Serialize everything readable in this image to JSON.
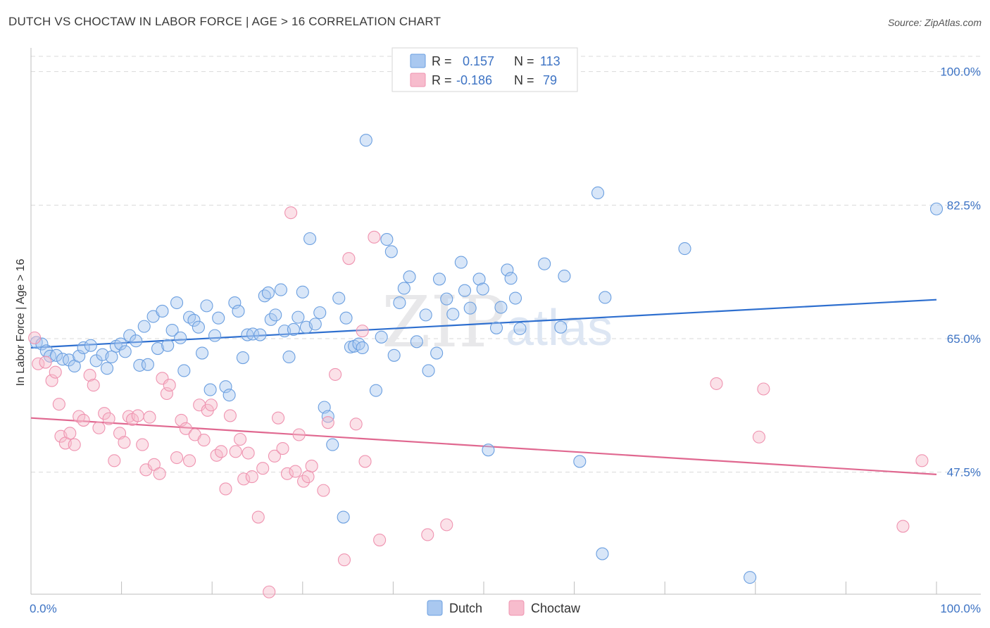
{
  "title": "DUTCH VS CHOCTAW IN LABOR FORCE | AGE > 16 CORRELATION CHART",
  "source": "Source: ZipAtlas.com",
  "watermark": {
    "zip": "ZIP",
    "atlas": "atlas"
  },
  "colors": {
    "dutch_fill": "#a9c8f0",
    "dutch_stroke": "#6b9fe0",
    "dutch_line": "#2e6fcf",
    "choctaw_fill": "#f7bccd",
    "choctaw_stroke": "#ef93b0",
    "choctaw_line": "#e06890",
    "axis_text": "#3d73c4",
    "grid": "#d9d9d9"
  },
  "legend": {
    "r_label": "R =",
    "n_label": "N =",
    "dutch": {
      "r": "0.157",
      "n": "113"
    },
    "choctaw": {
      "r": "-0.186",
      "n": "79"
    }
  },
  "bottom_legend": [
    "Dutch",
    "Choctaw"
  ],
  "chart_data": {
    "type": "scatter",
    "title": "DUTCH VS CHOCTAW IN LABOR FORCE | AGE > 16 CORRELATION CHART",
    "xlabel": "",
    "ylabel": "In Labor Force | Age > 16",
    "xlim": [
      0,
      100
    ],
    "ylim": [
      31.5,
      102
    ],
    "x_tick_labels": [
      "0.0%",
      "100.0%"
    ],
    "y_ticks": [
      47.5,
      65.0,
      82.5,
      100.0
    ],
    "y_tick_labels": [
      "47.5%",
      "65.0%",
      "82.5%",
      "100.0%"
    ],
    "series": [
      {
        "name": "Dutch",
        "trend": {
          "x": [
            0,
            100
          ],
          "y": [
            63.8,
            70.1
          ]
        },
        "points": [
          [
            0.6,
            64.5
          ],
          [
            1.2,
            64.3
          ],
          [
            1.7,
            63.4
          ],
          [
            2.1,
            62.7
          ],
          [
            2.8,
            62.8
          ],
          [
            3.5,
            62.3
          ],
          [
            4.2,
            62.2
          ],
          [
            4.8,
            61.4
          ],
          [
            5.3,
            62.7
          ],
          [
            5.8,
            63.8
          ],
          [
            6.6,
            64.1
          ],
          [
            7.2,
            62.1
          ],
          [
            7.9,
            62.9
          ],
          [
            8.4,
            61.1
          ],
          [
            8.9,
            62.6
          ],
          [
            9.4,
            64.0
          ],
          [
            9.9,
            64.3
          ],
          [
            10.4,
            63.3
          ],
          [
            10.9,
            65.4
          ],
          [
            11.6,
            64.7
          ],
          [
            12.0,
            61.5
          ],
          [
            12.5,
            66.6
          ],
          [
            12.9,
            61.6
          ],
          [
            13.5,
            67.9
          ],
          [
            14.0,
            63.7
          ],
          [
            14.5,
            68.6
          ],
          [
            15.1,
            64.1
          ],
          [
            15.6,
            66.1
          ],
          [
            16.1,
            69.7
          ],
          [
            16.5,
            65.1
          ],
          [
            16.9,
            60.8
          ],
          [
            17.5,
            67.8
          ],
          [
            18.0,
            67.4
          ],
          [
            18.5,
            66.5
          ],
          [
            18.9,
            63.1
          ],
          [
            19.4,
            69.3
          ],
          [
            19.8,
            58.3
          ],
          [
            20.3,
            65.4
          ],
          [
            20.7,
            67.7
          ],
          [
            21.5,
            58.7
          ],
          [
            21.9,
            57.6
          ],
          [
            22.5,
            69.7
          ],
          [
            22.9,
            68.6
          ],
          [
            23.4,
            62.5
          ],
          [
            23.9,
            65.5
          ],
          [
            24.5,
            65.6
          ],
          [
            25.3,
            65.5
          ],
          [
            25.8,
            70.6
          ],
          [
            26.2,
            71.0
          ],
          [
            26.5,
            67.5
          ],
          [
            27.0,
            68.1
          ],
          [
            27.6,
            71.4
          ],
          [
            28.0,
            66.0
          ],
          [
            28.5,
            62.6
          ],
          [
            29.0,
            66.2
          ],
          [
            29.5,
            67.8
          ],
          [
            30.0,
            71.1
          ],
          [
            30.4,
            66.5
          ],
          [
            30.8,
            78.1
          ],
          [
            31.4,
            66.9
          ],
          [
            31.9,
            68.4
          ],
          [
            32.4,
            56.0
          ],
          [
            32.8,
            54.8
          ],
          [
            33.3,
            51.1
          ],
          [
            34.0,
            70.3
          ],
          [
            34.5,
            41.6
          ],
          [
            34.8,
            67.7
          ],
          [
            35.3,
            63.9
          ],
          [
            35.7,
            64.0
          ],
          [
            36.2,
            64.3
          ],
          [
            36.6,
            63.8
          ],
          [
            37.0,
            91.0
          ],
          [
            38.1,
            58.2
          ],
          [
            38.7,
            65.2
          ],
          [
            39.3,
            78.0
          ],
          [
            39.8,
            76.4
          ],
          [
            40.1,
            62.8
          ],
          [
            40.7,
            69.7
          ],
          [
            41.2,
            71.6
          ],
          [
            41.8,
            73.1
          ],
          [
            42.6,
            64.6
          ],
          [
            43.6,
            68.1
          ],
          [
            43.9,
            60.8
          ],
          [
            44.8,
            63.1
          ],
          [
            45.1,
            72.8
          ],
          [
            45.9,
            70.2
          ],
          [
            46.6,
            68.2
          ],
          [
            47.5,
            75.0
          ],
          [
            47.9,
            71.3
          ],
          [
            48.5,
            69.0
          ],
          [
            49.5,
            72.8
          ],
          [
            49.9,
            71.5
          ],
          [
            50.5,
            50.4
          ],
          [
            51.4,
            66.4
          ],
          [
            51.9,
            69.1
          ],
          [
            52.6,
            74.0
          ],
          [
            53.0,
            72.9
          ],
          [
            53.5,
            70.3
          ],
          [
            54.0,
            66.3
          ],
          [
            56.7,
            74.8
          ],
          [
            58.5,
            66.5
          ],
          [
            58.9,
            73.2
          ],
          [
            60.6,
            48.9
          ],
          [
            62.6,
            84.1
          ],
          [
            63.1,
            36.8
          ],
          [
            63.4,
            70.4
          ],
          [
            72.2,
            76.8
          ],
          [
            79.4,
            33.7
          ],
          [
            100.0,
            82.0
          ]
        ]
      },
      {
        "name": "Choctaw",
        "trend": {
          "x": [
            0,
            100
          ],
          "y": [
            54.6,
            47.2
          ]
        },
        "points": [
          [
            0.4,
            65.1
          ],
          [
            0.8,
            61.7
          ],
          [
            1.6,
            61.9
          ],
          [
            2.3,
            59.5
          ],
          [
            2.7,
            60.6
          ],
          [
            3.1,
            56.4
          ],
          [
            3.3,
            52.2
          ],
          [
            3.8,
            51.3
          ],
          [
            4.3,
            52.6
          ],
          [
            4.8,
            51.1
          ],
          [
            5.3,
            54.8
          ],
          [
            5.8,
            54.3
          ],
          [
            6.5,
            60.2
          ],
          [
            6.9,
            58.9
          ],
          [
            7.5,
            53.3
          ],
          [
            8.1,
            55.2
          ],
          [
            8.6,
            54.5
          ],
          [
            9.2,
            49.0
          ],
          [
            9.8,
            52.6
          ],
          [
            10.3,
            51.4
          ],
          [
            10.8,
            54.8
          ],
          [
            11.2,
            54.4
          ],
          [
            11.8,
            54.9
          ],
          [
            12.3,
            51.1
          ],
          [
            12.7,
            47.8
          ],
          [
            13.1,
            54.7
          ],
          [
            13.6,
            48.5
          ],
          [
            14.2,
            47.3
          ],
          [
            14.5,
            59.8
          ],
          [
            15.0,
            57.8
          ],
          [
            15.3,
            58.9
          ],
          [
            16.1,
            49.4
          ],
          [
            16.6,
            54.3
          ],
          [
            17.1,
            53.2
          ],
          [
            17.5,
            49.0
          ],
          [
            18.1,
            52.4
          ],
          [
            18.6,
            56.3
          ],
          [
            19.1,
            51.7
          ],
          [
            19.5,
            55.6
          ],
          [
            19.9,
            56.3
          ],
          [
            20.5,
            49.7
          ],
          [
            21.0,
            50.2
          ],
          [
            21.5,
            45.3
          ],
          [
            22.0,
            54.9
          ],
          [
            22.6,
            50.2
          ],
          [
            23.1,
            51.8
          ],
          [
            23.5,
            46.6
          ],
          [
            24.0,
            50.0
          ],
          [
            24.4,
            46.9
          ],
          [
            25.1,
            41.6
          ],
          [
            25.6,
            48.0
          ],
          [
            26.3,
            31.8
          ],
          [
            26.9,
            49.6
          ],
          [
            27.3,
            54.6
          ],
          [
            27.8,
            50.6
          ],
          [
            28.3,
            47.3
          ],
          [
            28.7,
            81.5
          ],
          [
            29.2,
            47.6
          ],
          [
            29.6,
            52.4
          ],
          [
            30.1,
            46.3
          ],
          [
            30.6,
            46.9
          ],
          [
            31.0,
            48.3
          ],
          [
            32.3,
            45.1
          ],
          [
            32.8,
            54.0
          ],
          [
            33.6,
            60.3
          ],
          [
            34.6,
            36.0
          ],
          [
            35.1,
            75.5
          ],
          [
            35.9,
            53.8
          ],
          [
            36.6,
            66.0
          ],
          [
            36.9,
            48.9
          ],
          [
            37.9,
            78.3
          ],
          [
            38.5,
            38.6
          ],
          [
            43.8,
            39.3
          ],
          [
            45.9,
            40.6
          ],
          [
            75.7,
            59.1
          ],
          [
            80.4,
            52.1
          ],
          [
            80.9,
            58.4
          ],
          [
            96.3,
            40.4
          ],
          [
            98.4,
            49.0
          ]
        ]
      }
    ]
  }
}
